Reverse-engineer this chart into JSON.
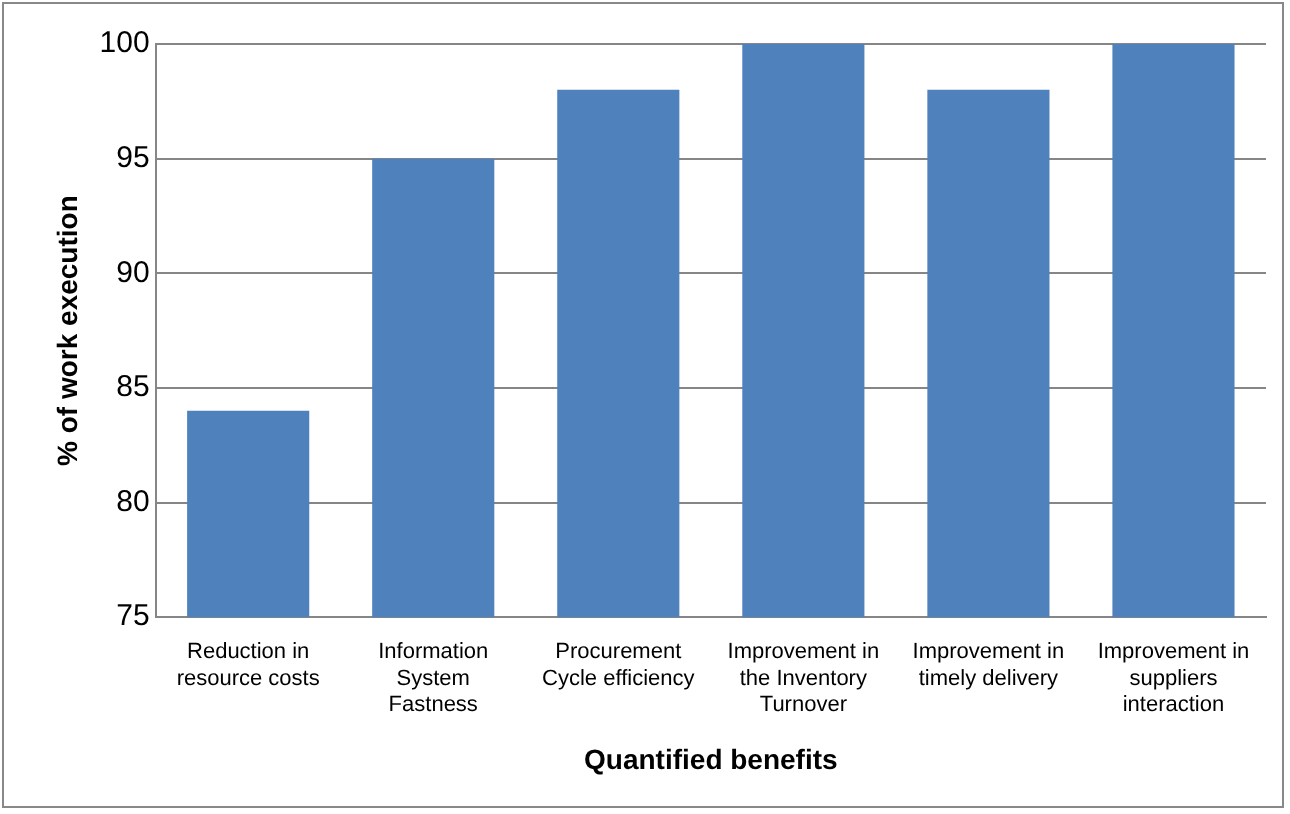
{
  "chart_data": {
    "type": "bar",
    "xlabel": "Quantified benefits",
    "ylabel": "% of work execution",
    "categories": [
      "Reduction in resource costs",
      "Information System Fastness",
      "Procurement Cycle efficiency",
      "Improvement in the Inventory Turnover",
      "Improvement in timely delivery",
      "Improvement in suppliers interaction"
    ],
    "values": [
      84,
      95,
      98,
      100,
      98,
      100
    ],
    "color": "#4f81bd",
    "ylim": [
      75,
      100
    ],
    "yticks": [
      75,
      80,
      85,
      90,
      95,
      100
    ],
    "grid": "y",
    "legend": false
  }
}
